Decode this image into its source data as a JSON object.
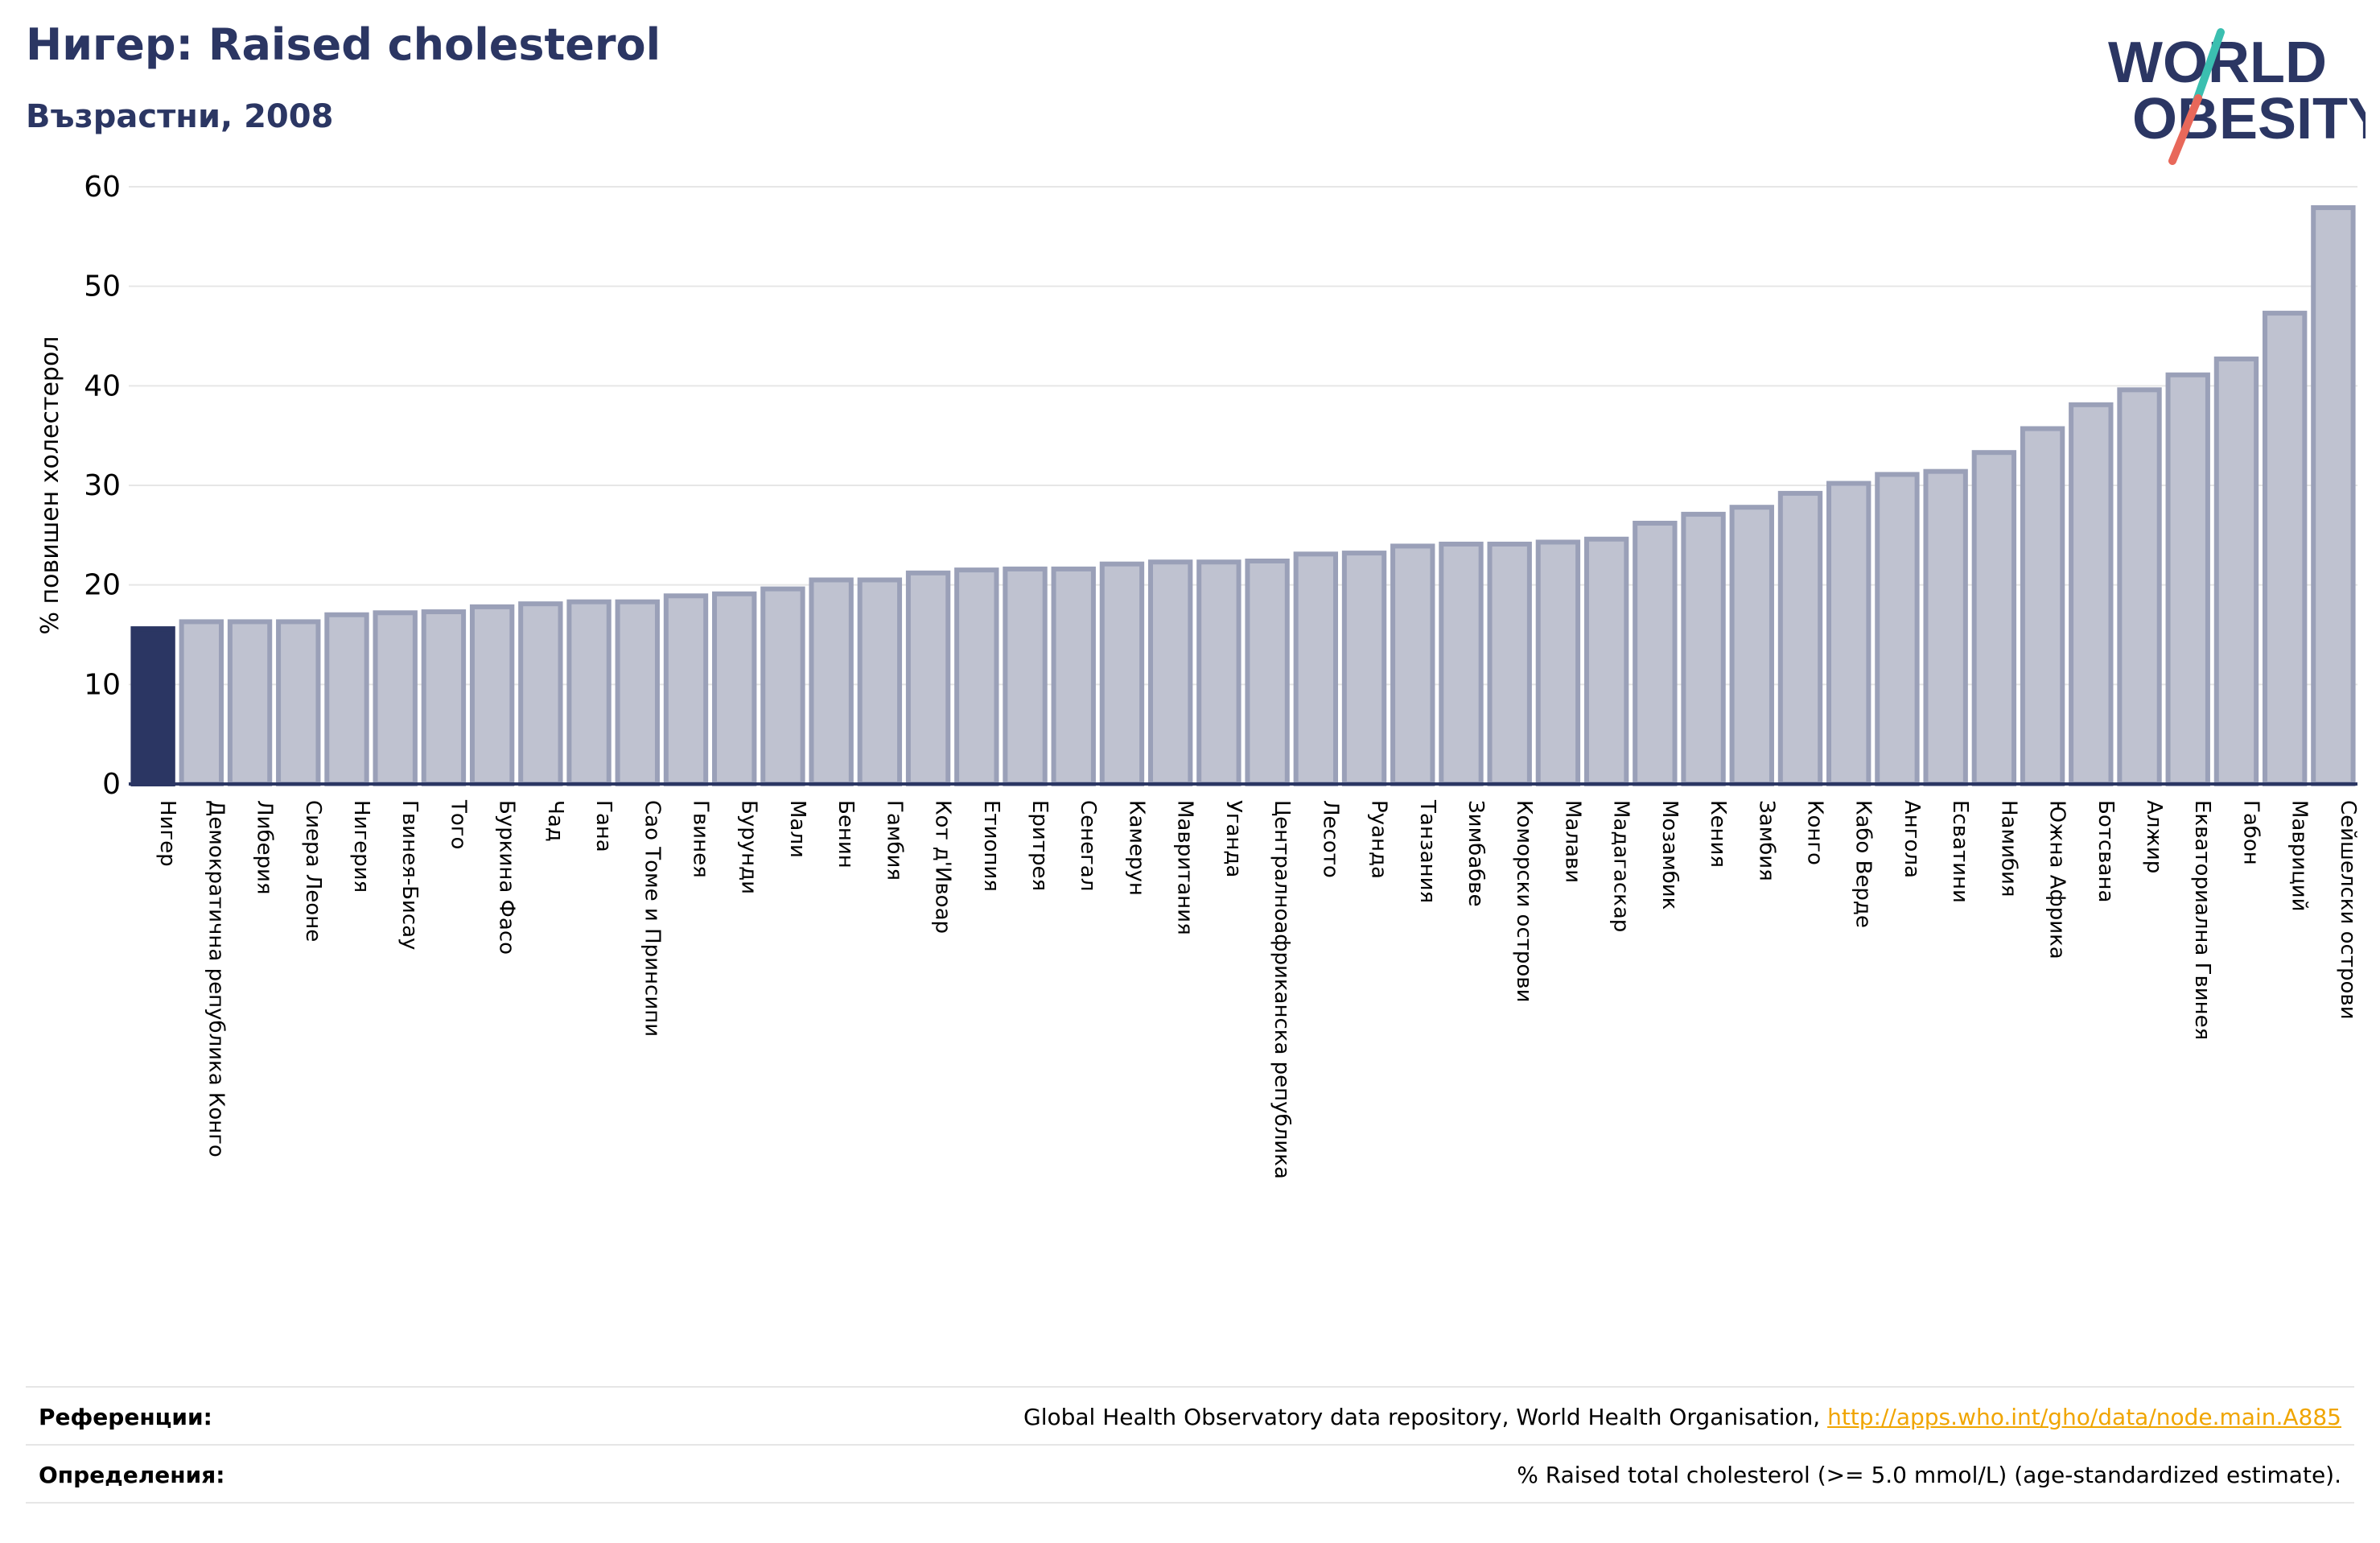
{
  "header": {
    "title": "Нигер: Raised cholesterol",
    "subtitle": "Възрастни, 2008"
  },
  "logo": {
    "line1": "WORLD",
    "line2": "OBESITY",
    "name": "world-obesity-logo"
  },
  "colors": {
    "highlight": "#2b3663",
    "bar_fill": "#bfc2d0",
    "bar_stroke": "#9aa0b8",
    "grid": "#e6e6e6",
    "axis": "#2b3663",
    "link": "#f0a500",
    "logo_teal": "#3bbfb0",
    "logo_red": "#e8685a"
  },
  "chart_data": {
    "type": "bar",
    "ylabel": "% повишен холестерол",
    "ylim": [
      0,
      60
    ],
    "yticks": [
      0,
      10,
      20,
      30,
      40,
      50,
      60
    ],
    "grid": true,
    "highlight_index": 0,
    "categories": [
      "Нигер",
      "Демократична република Конго",
      "Либерия",
      "Сиера Леоне",
      "Нигерия",
      "Гвинея-Бисау",
      "Того",
      "Буркина Фасо",
      "Чад",
      "Гана",
      "Сао Томе и Принсипи",
      "Гвинея",
      "Бурунди",
      "Мали",
      "Бенин",
      "Гамбия",
      "Кот д'Ивоар",
      "Етиопия",
      "Еритрея",
      "Сенегал",
      "Камерун",
      "Мавритания",
      "Уганда",
      "Централноафриканска република",
      "Лесото",
      "Руанда",
      "Танзания",
      "Зимбабве",
      "Коморски острови",
      "Малави",
      "Мадагаскар",
      "Мозамбик",
      "Кения",
      "Замбия",
      "Конго",
      "Кабо Верде",
      "Ангола",
      "Есватини",
      "Намибия",
      "Южна Африка",
      "Ботсвана",
      "Алжир",
      "Екваториална Гвинея",
      "Габон",
      "Мавриций",
      "Сейшелски острови"
    ],
    "values": [
      15.6,
      16.3,
      16.3,
      16.3,
      17.0,
      17.2,
      17.3,
      17.8,
      18.1,
      18.3,
      18.3,
      18.9,
      19.1,
      19.6,
      20.5,
      20.5,
      21.2,
      21.5,
      21.6,
      21.6,
      22.1,
      22.3,
      22.3,
      22.4,
      23.1,
      23.2,
      23.9,
      24.1,
      24.1,
      24.3,
      24.6,
      26.2,
      27.1,
      27.8,
      29.2,
      30.2,
      31.1,
      31.4,
      33.3,
      35.7,
      38.1,
      39.6,
      41.1,
      42.7,
      47.3,
      57.9
    ]
  },
  "footer": {
    "references_label": "Референции:",
    "references_text": "Global Health Observatory data repository, World Health Organisation, ",
    "references_link": "http://apps.who.int/gho/data/node.main.A885",
    "definitions_label": "Определения:",
    "definitions_text": "% Raised total cholesterol (>= 5.0 mmol/L) (age-standardized estimate)."
  }
}
